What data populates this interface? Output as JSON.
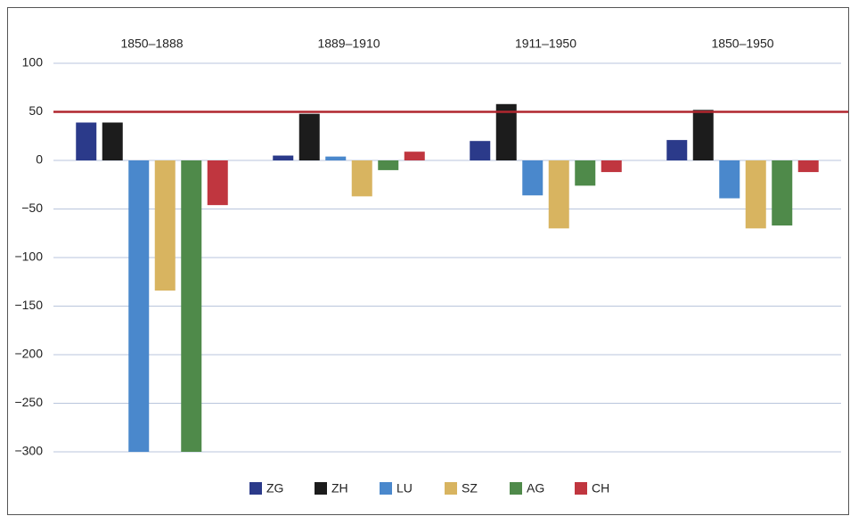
{
  "chart_data": {
    "type": "bar",
    "categories": [
      "1850–1888",
      "1889–1910",
      "1911–1950",
      "1850–1950"
    ],
    "series": [
      {
        "name": "ZG",
        "color": "#2b3a8a",
        "values": [
          39,
          5,
          20,
          21
        ]
      },
      {
        "name": "ZH",
        "color": "#1c1c1c",
        "values": [
          39,
          48,
          58,
          52
        ]
      },
      {
        "name": "LU",
        "color": "#4a88cc",
        "values": [
          -300,
          4,
          -36,
          -39
        ]
      },
      {
        "name": "SZ",
        "color": "#d8b460",
        "values": [
          -134,
          -37,
          -70,
          -70
        ]
      },
      {
        "name": "AG",
        "color": "#4f8a4a",
        "values": [
          -300,
          -10,
          -26,
          -67
        ]
      },
      {
        "name": "CH",
        "color": "#c0363f",
        "values": [
          -46,
          9,
          -12,
          -12
        ]
      }
    ],
    "ylim": [
      -300,
      100
    ],
    "yticks": [
      100,
      50,
      0,
      {
        "value": -50,
        "label": "−50"
      },
      {
        "value": -100,
        "label": "−100"
      },
      {
        "value": -150,
        "label": "−150"
      },
      {
        "value": -200,
        "label": "−200"
      },
      {
        "value": -250,
        "label": "−250"
      },
      {
        "value": -300,
        "label": "−300"
      }
    ],
    "grid": true,
    "reference_line": {
      "value": 50,
      "color": "#b0262e"
    },
    "legend": "bottom"
  }
}
